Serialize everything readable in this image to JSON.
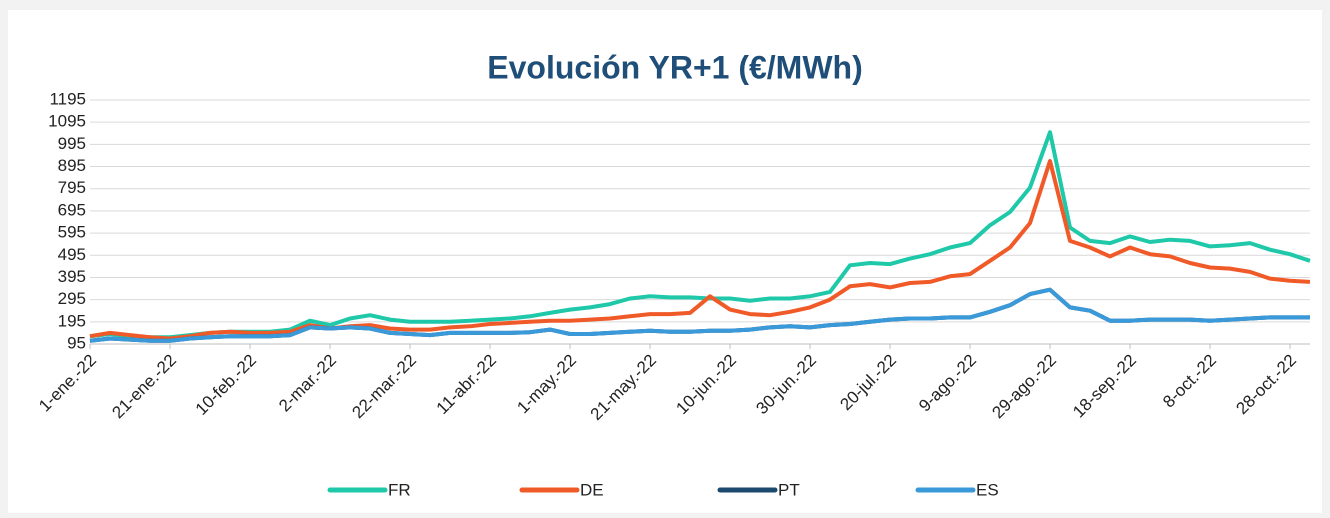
{
  "chart_data": {
    "type": "line",
    "title": "Evolución YR+1  (€/MWh)",
    "categories": [
      "1-ene.-22",
      null,
      null,
      null,
      "21-ene.-22",
      null,
      null,
      null,
      "10-feb.-22",
      null,
      null,
      null,
      "2-mar.-22",
      null,
      null,
      null,
      "22-mar.-22",
      null,
      null,
      null,
      "11-abr.-22",
      null,
      null,
      null,
      "1-may.-22",
      null,
      null,
      null,
      "21-may.-22",
      null,
      null,
      null,
      "10-jun.-22",
      null,
      null,
      null,
      "30-jun.-22",
      null,
      null,
      null,
      "20-jul.-22",
      null,
      null,
      null,
      "9-ago.-22",
      null,
      null,
      null,
      "29-ago.-22",
      null,
      null,
      null,
      "18-sep.-22",
      null,
      null,
      null,
      "8-oct.-22",
      null,
      null,
      null,
      "28-oct.-22",
      null
    ],
    "series": [
      {
        "name": "FR",
        "color": "#1ec8a8",
        "values": [
          130,
          140,
          130,
          125,
          125,
          135,
          145,
          150,
          150,
          150,
          160,
          200,
          180,
          210,
          225,
          205,
          195,
          195,
          195,
          200,
          205,
          210,
          220,
          235,
          250,
          260,
          275,
          300,
          310,
          305,
          305,
          300,
          300,
          290,
          300,
          300,
          310,
          330,
          450,
          460,
          455,
          480,
          500,
          530,
          550,
          630,
          690,
          800,
          1050,
          620,
          560,
          550,
          580,
          555,
          565,
          560,
          535,
          540,
          550,
          520,
          500,
          470
        ]
      },
      {
        "name": "DE",
        "color": "#f05a28",
        "values": [
          130,
          145,
          135,
          125,
          120,
          130,
          145,
          150,
          145,
          145,
          150,
          180,
          165,
          175,
          180,
          165,
          160,
          160,
          170,
          175,
          185,
          190,
          195,
          200,
          200,
          205,
          210,
          220,
          230,
          230,
          235,
          310,
          250,
          230,
          225,
          240,
          260,
          295,
          355,
          365,
          350,
          370,
          375,
          400,
          410,
          470,
          530,
          640,
          920,
          560,
          530,
          490,
          530,
          500,
          490,
          460,
          440,
          435,
          420,
          390,
          380,
          375
        ]
      },
      {
        "name": "PT",
        "color": "#1c4a6e",
        "values": [
          110,
          120,
          115,
          110,
          110,
          120,
          125,
          130,
          130,
          130,
          135,
          170,
          165,
          170,
          165,
          145,
          140,
          135,
          145,
          145,
          145,
          145,
          148,
          160,
          140,
          140,
          145,
          150,
          155,
          150,
          150,
          155,
          155,
          160,
          170,
          175,
          170,
          180,
          185,
          195,
          205,
          210,
          210,
          215,
          215,
          240,
          270,
          320,
          340,
          260,
          245,
          200,
          200,
          205,
          205,
          205,
          200,
          205,
          210,
          215,
          215,
          215
        ]
      },
      {
        "name": "ES",
        "color": "#3a9ad9",
        "values": [
          110,
          120,
          115,
          110,
          110,
          120,
          125,
          130,
          130,
          130,
          135,
          170,
          165,
          170,
          165,
          145,
          140,
          135,
          145,
          145,
          145,
          145,
          148,
          160,
          140,
          140,
          145,
          150,
          155,
          150,
          150,
          155,
          155,
          160,
          170,
          175,
          170,
          180,
          185,
          195,
          205,
          210,
          210,
          215,
          215,
          240,
          270,
          320,
          340,
          260,
          245,
          200,
          200,
          205,
          205,
          205,
          200,
          205,
          210,
          215,
          215,
          215
        ]
      }
    ],
    "ylim": [
      95,
      1195
    ],
    "yticks": [
      95,
      195,
      295,
      395,
      495,
      595,
      695,
      795,
      895,
      995,
      1095,
      1195
    ],
    "grid": true,
    "legend": "bottom"
  }
}
